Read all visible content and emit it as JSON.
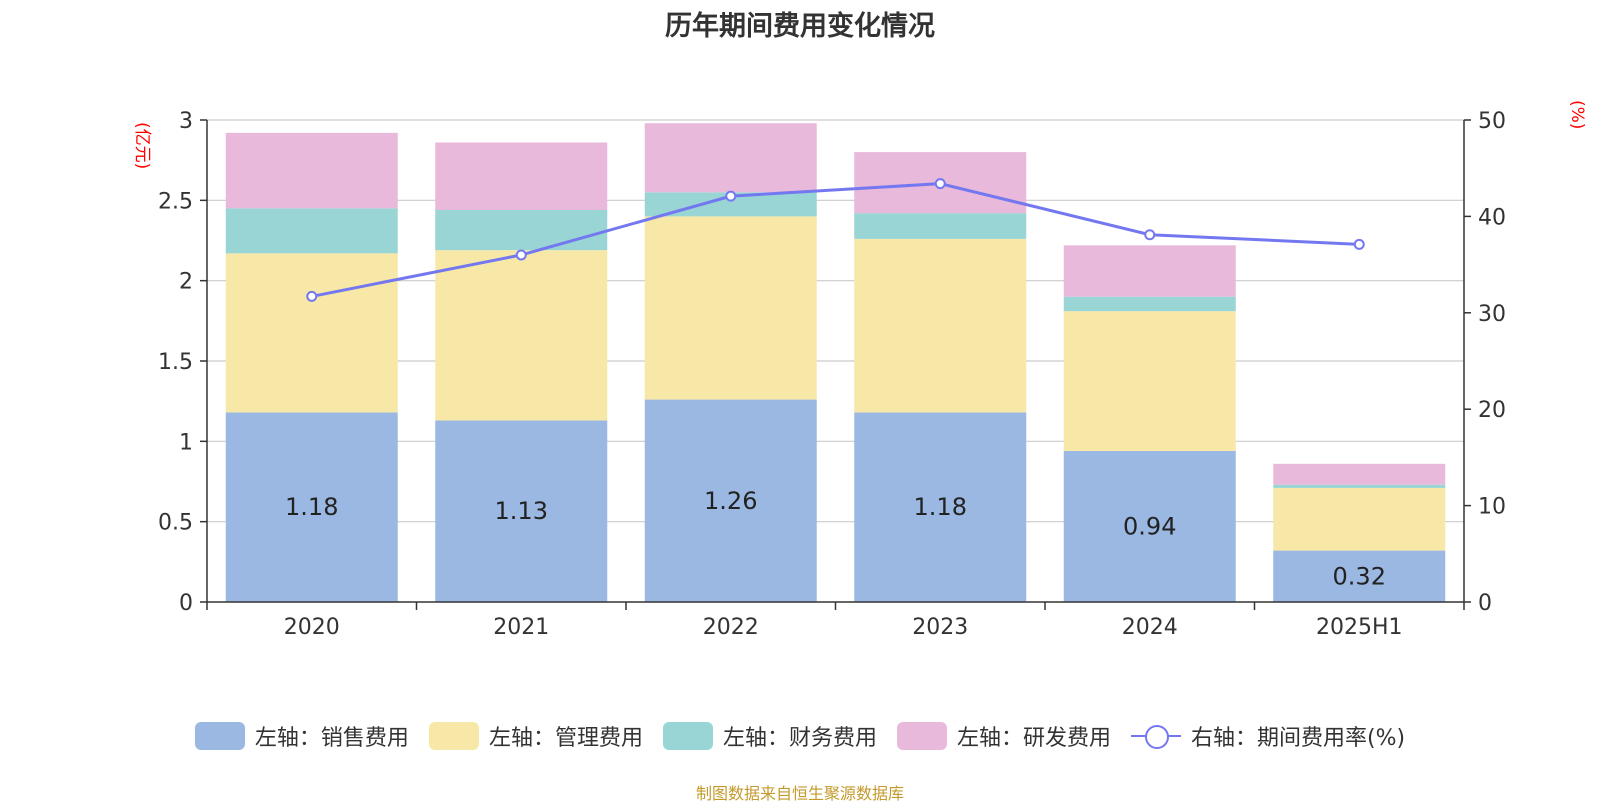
{
  "chart_data": {
    "type": "bar",
    "title": "历年期间费用变化情况",
    "y_left_unit": "(亿元)",
    "y_right_unit": "(%)",
    "categories": [
      "2020",
      "2021",
      "2022",
      "2023",
      "2024",
      "2025H1"
    ],
    "ylim_left": [
      0,
      3
    ],
    "yticks_left": [
      "0",
      "0.5",
      "1",
      "1.5",
      "2",
      "2.5",
      "3"
    ],
    "ylim_right": [
      0,
      50
    ],
    "yticks_right": [
      "0",
      "10",
      "20",
      "30",
      "40",
      "50"
    ],
    "series": [
      {
        "name": "左轴：销售费用",
        "type": "bar",
        "color": "#9bb8e2",
        "values": [
          1.18,
          1.13,
          1.26,
          1.18,
          0.94,
          0.32
        ],
        "labels": [
          "1.18",
          "1.13",
          "1.26",
          "1.18",
          "0.94",
          "0.32"
        ]
      },
      {
        "name": "左轴：管理费用",
        "type": "bar",
        "color": "#f8e8a8",
        "values": [
          0.99,
          1.06,
          1.14,
          1.08,
          0.87,
          0.39
        ]
      },
      {
        "name": "左轴：财务费用",
        "type": "bar",
        "color": "#98d5d4",
        "values": [
          0.28,
          0.25,
          0.15,
          0.16,
          0.09,
          0.02
        ]
      },
      {
        "name": "左轴：研发费用",
        "type": "bar",
        "color": "#e8b9da",
        "values": [
          0.47,
          0.42,
          0.43,
          0.38,
          0.32,
          0.13
        ]
      },
      {
        "name": "右轴：期间费用率(%)",
        "type": "line",
        "axis": "right",
        "color": "#7478f0",
        "values": [
          31.7,
          36.0,
          42.1,
          43.4,
          38.1,
          37.1
        ]
      }
    ],
    "grid": true,
    "legend_position": "bottom"
  },
  "source_note": "制图数据来自恒生聚源数据库"
}
